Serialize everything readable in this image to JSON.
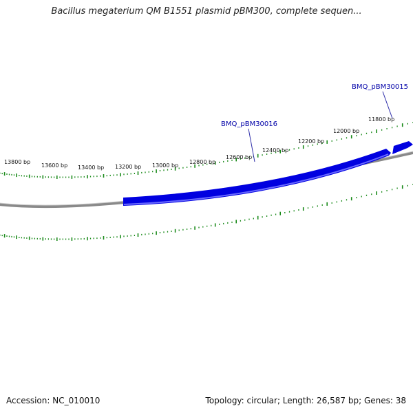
{
  "title": "Bacillus megaterium QM B1551 plasmid pBM300, complete sequen...",
  "accession": "Accession: NC_010010",
  "summary": "Topology: circular; Length: 26,587 bp; Genes: 38",
  "colors": {
    "backbone": "#888888",
    "gene": "#0000e0",
    "gene_highlight": "#5a5aff",
    "tick": "#1a8a1a",
    "label_line": "#2a2aa8"
  },
  "tick_labels": [
    "11800 bp",
    "12000 bp",
    "12200 bp",
    "12400 bp",
    "12600 bp",
    "12800 bp",
    "13000 bp",
    "13200 bp",
    "13400 bp",
    "13600 bp",
    "13800 bp"
  ],
  "genes": [
    {
      "name": "BMQ_pBM30015"
    },
    {
      "name": "BMQ_pBM30016"
    }
  ]
}
